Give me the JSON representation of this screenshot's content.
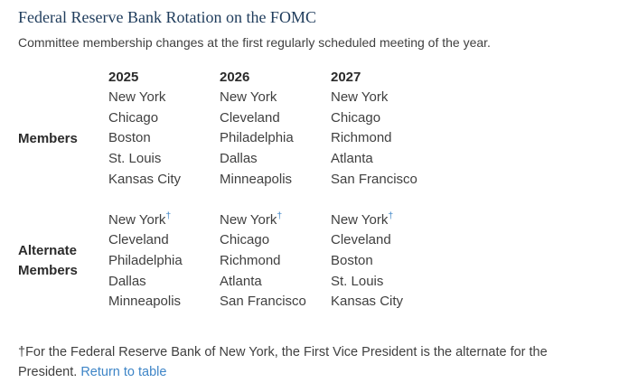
{
  "page": {
    "title": "Federal Reserve Bank Rotation on the FOMC",
    "subtitle": "Committee membership changes at the first regularly scheduled meeting of the year."
  },
  "table": {
    "years": [
      "2025",
      "2026",
      "2027"
    ],
    "groups": [
      {
        "label": "Members",
        "columns": [
          {
            "items": [
              {
                "text": "New York"
              },
              {
                "text": "Chicago"
              },
              {
                "text": "Boston"
              },
              {
                "text": "St. Louis"
              },
              {
                "text": "Kansas City"
              }
            ]
          },
          {
            "items": [
              {
                "text": "New York"
              },
              {
                "text": "Cleveland"
              },
              {
                "text": "Philadelphia"
              },
              {
                "text": "Dallas"
              },
              {
                "text": "Minneapolis"
              }
            ]
          },
          {
            "items": [
              {
                "text": "New York"
              },
              {
                "text": "Chicago"
              },
              {
                "text": "Richmond"
              },
              {
                "text": "Atlanta"
              },
              {
                "text": "San Francisco"
              }
            ]
          }
        ]
      },
      {
        "label": "Alternate Members",
        "columns": [
          {
            "items": [
              {
                "text": "New York",
                "sup": "†"
              },
              {
                "text": "Cleveland"
              },
              {
                "text": "Philadelphia"
              },
              {
                "text": "Dallas"
              },
              {
                "text": "Minneapolis"
              }
            ]
          },
          {
            "items": [
              {
                "text": "New York",
                "sup": "†"
              },
              {
                "text": "Chicago"
              },
              {
                "text": "Richmond"
              },
              {
                "text": "Atlanta"
              },
              {
                "text": "San Francisco"
              }
            ]
          },
          {
            "items": [
              {
                "text": "New York",
                "sup": "†"
              },
              {
                "text": "Cleveland"
              },
              {
                "text": "Boston"
              },
              {
                "text": "St. Louis"
              },
              {
                "text": "Kansas City"
              }
            ]
          }
        ]
      }
    ]
  },
  "footnote": {
    "symbol": "†",
    "text": "For the Federal Reserve Bank of New York, the First Vice President is the alternate for the President.",
    "link_label": "Return to table"
  },
  "colors": {
    "title": "#1f3c5c",
    "body_text": "#404040",
    "bold_text": "#2b2b2b",
    "link_blue": "#3e85c7",
    "background": "#ffffff"
  }
}
